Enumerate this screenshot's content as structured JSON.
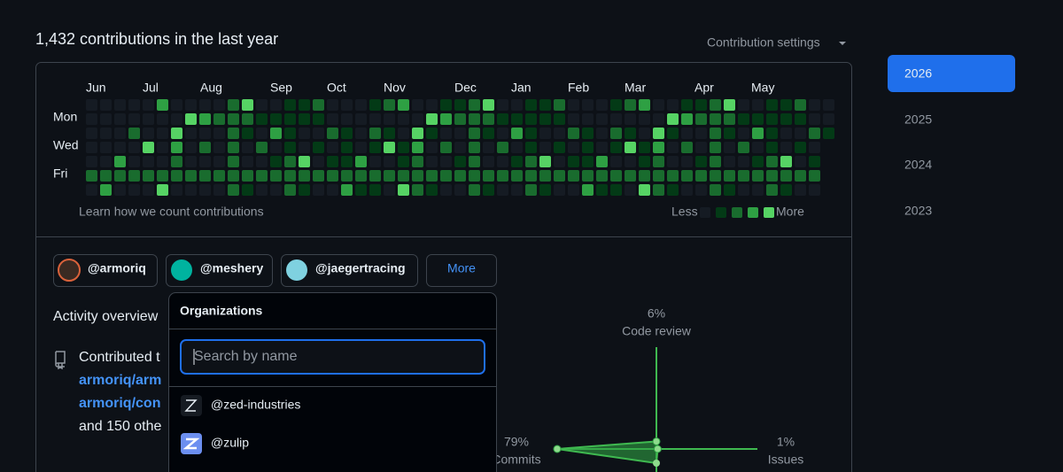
{
  "header": {
    "title": "1,432 contributions in the last year",
    "settings": "Contribution settings"
  },
  "calendar": {
    "months": [
      "Jun",
      "Jul",
      "Aug",
      "Sep",
      "Oct",
      "Nov",
      "Dec",
      "Jan",
      "Feb",
      "Mar",
      "Apr",
      "May"
    ],
    "days": [
      "Mon",
      "Wed",
      "Fri"
    ],
    "footer_link": "Learn how we count contributions",
    "legend_less": "Less",
    "legend_more": "More"
  },
  "years": [
    "2026",
    "2025",
    "2024",
    "2023"
  ],
  "organizations": {
    "chips": [
      "@armoriq",
      "@meshery",
      "@jaegertracing"
    ],
    "more": "More"
  },
  "activity": {
    "title": "Activity overview",
    "contributed": "Contributed t",
    "repos": [
      "armoriq/arm",
      "armoriq/con"
    ],
    "others": "and 150 othe",
    "radar": [
      {
        "label": "Code review",
        "value": 6,
        "value_label": "6%"
      },
      {
        "label": "Issues",
        "value": 1,
        "value_label": "1%"
      },
      {
        "label": "Commits",
        "value": 79,
        "value_label": "79%"
      }
    ]
  },
  "dropdown": {
    "title": "Organizations",
    "search_placeholder": "Search by name",
    "items": [
      "@zed-industries",
      "@zulip"
    ]
  }
}
